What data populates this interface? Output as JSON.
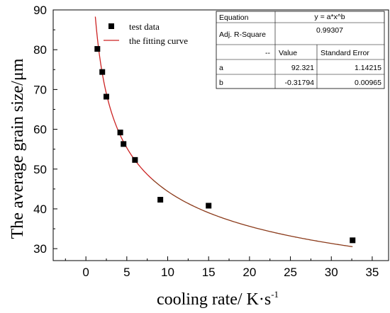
{
  "chart_data": {
    "type": "scatter",
    "xlabel": "cooling rate/ K·s",
    "xlabel_superscript": "-1",
    "ylabel": "The average grain size/μm",
    "xlim": [
      -4,
      37
    ],
    "ylim": [
      27,
      90
    ],
    "x_ticks": [
      0,
      5,
      10,
      15,
      20,
      25,
      30,
      35
    ],
    "y_ticks": [
      30,
      40,
      50,
      60,
      70,
      80,
      90
    ],
    "grid": false,
    "legend_position": "top-left",
    "series": [
      {
        "name": "test data",
        "kind": "points",
        "marker": "square",
        "color": "#000000",
        "points": [
          {
            "x": 1.4,
            "y": 80.2
          },
          {
            "x": 2.0,
            "y": 74.4
          },
          {
            "x": 2.5,
            "y": 68.2
          },
          {
            "x": 4.2,
            "y": 59.2
          },
          {
            "x": 4.6,
            "y": 56.3
          },
          {
            "x": 6.0,
            "y": 52.3
          },
          {
            "x": 9.1,
            "y": 42.3
          },
          {
            "x": 15.0,
            "y": 40.8
          },
          {
            "x": 32.6,
            "y": 32.1
          }
        ]
      },
      {
        "name": "the fitting curve",
        "kind": "curve",
        "color": "#cc2222",
        "tail_color": "#8b3a1a",
        "model": {
          "a": 92.321,
          "b": -0.31794
        },
        "x_range": [
          1.15,
          32.6
        ]
      }
    ],
    "fit_table": {
      "equation_label": "Equation",
      "equation": "y = a*x^b",
      "adj_r_label": "Adj. R-Square",
      "adj_r_value": "0.99307",
      "header_blank": "--",
      "header_value": "Value",
      "header_error": "Standard Error",
      "rows": [
        {
          "param": "a",
          "value": "92.321",
          "error": "1.14215"
        },
        {
          "param": "b",
          "value": "-0.31794",
          "error": "0.00965"
        }
      ]
    }
  }
}
